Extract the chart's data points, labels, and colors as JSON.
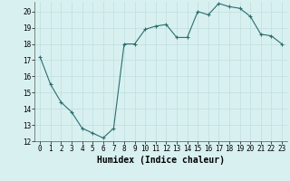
{
  "x": [
    0,
    1,
    2,
    3,
    4,
    5,
    6,
    7,
    8,
    9,
    10,
    11,
    12,
    13,
    14,
    15,
    16,
    17,
    18,
    19,
    20,
    21,
    22,
    23
  ],
  "y": [
    17.2,
    15.5,
    14.4,
    13.8,
    12.8,
    12.5,
    12.2,
    12.8,
    18.0,
    18.0,
    18.9,
    19.1,
    19.2,
    18.4,
    18.4,
    20.0,
    19.8,
    20.5,
    20.3,
    20.2,
    19.7,
    18.6,
    18.5,
    18.0
  ],
  "xlabel": "Humidex (Indice chaleur)",
  "ylim": [
    12,
    20.6
  ],
  "yticks": [
    12,
    13,
    14,
    15,
    16,
    17,
    18,
    19,
    20
  ],
  "xticks": [
    0,
    1,
    2,
    3,
    4,
    5,
    6,
    7,
    8,
    9,
    10,
    11,
    12,
    13,
    14,
    15,
    16,
    17,
    18,
    19,
    20,
    21,
    22,
    23
  ],
  "line_color": "#2d6e6e",
  "marker_color": "#2d6e6e",
  "bg_color": "#d8f0f0",
  "grid_color": "#c0dede",
  "tick_label_fontsize": 5.5,
  "xlabel_fontsize": 7.0
}
